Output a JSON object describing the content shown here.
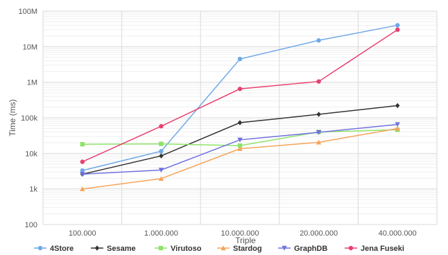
{
  "chart_data": {
    "type": "line",
    "xlabel": "Triple",
    "ylabel": "Time (ms)",
    "yscale": "log",
    "ylim": [
      100,
      100000000
    ],
    "yticks": [
      100,
      1000,
      10000,
      100000,
      1000000,
      10000000,
      100000000
    ],
    "ytick_labels": [
      "100",
      "1k",
      "10k",
      "100k",
      "1M",
      "10M",
      "100M"
    ],
    "categories": [
      "100.000",
      "1.000.000",
      "10.000.000",
      "20.000.000",
      "40.000.000"
    ],
    "grid": true,
    "legend_position": "bottom",
    "series": [
      {
        "name": "4Store",
        "color": "#6fa8e8",
        "marker": "circle",
        "values": [
          3300,
          11500,
          4500000,
          15000000,
          40000000
        ]
      },
      {
        "name": "Sesame",
        "color": "#333333",
        "marker": "diamond",
        "values": [
          2600,
          8500,
          73000,
          125000,
          220000
        ]
      },
      {
        "name": "Virutoso",
        "color": "#8ee26b",
        "marker": "square",
        "values": [
          18000,
          18500,
          16500,
          40000,
          46000
        ]
      },
      {
        "name": "Stardog",
        "color": "#f5a45c",
        "marker": "triangle-up",
        "values": [
          1000,
          1950,
          13500,
          20500,
          50000
        ]
      },
      {
        "name": "GraphDB",
        "color": "#6f72e0",
        "marker": "triangle-down",
        "values": [
          2600,
          3400,
          24000,
          39000,
          65000
        ]
      },
      {
        "name": "Jena Fuseki",
        "color": "#e8406e",
        "marker": "circle",
        "values": [
          5800,
          58000,
          650000,
          1050000,
          30000000
        ]
      }
    ]
  }
}
